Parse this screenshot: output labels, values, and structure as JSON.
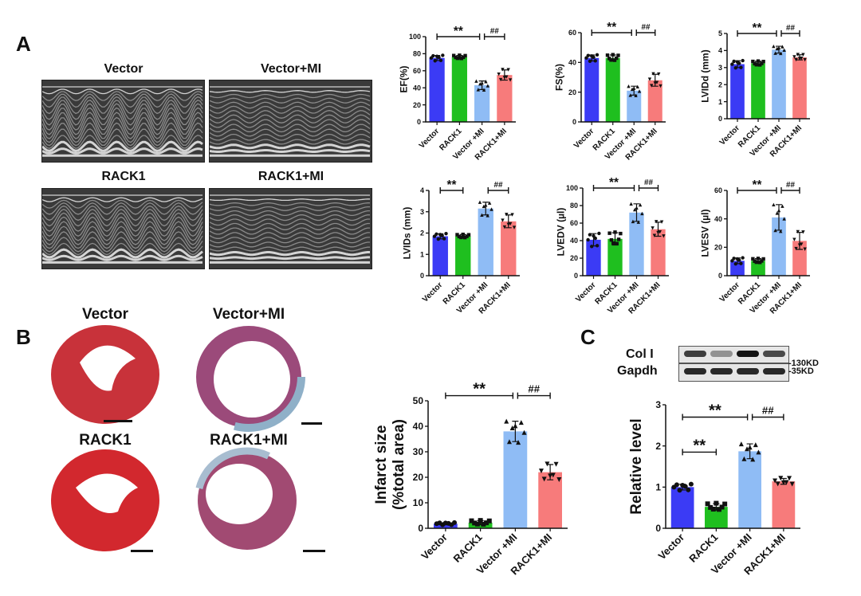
{
  "panels": {
    "a": "A",
    "b": "B",
    "c": "C"
  },
  "echo": {
    "labels": [
      "Vector",
      "Vector+MI",
      "RACK1",
      "RACK1+MI"
    ]
  },
  "histology": {
    "labels": [
      "Vector",
      "Vector+MI",
      "RACK1",
      "RACK1+MI"
    ]
  },
  "blot": {
    "rows": [
      {
        "label": "Col I",
        "marker": "-130KD"
      },
      {
        "label": "Gapdh",
        "marker": "-35KD"
      }
    ],
    "col1_intensity": [
      0.8,
      0.4,
      1.0,
      0.75
    ]
  },
  "colors": {
    "Vector": "#3b3bf5",
    "RACK1": "#1fbf1f",
    "Vector +MI": "#8fbcf5",
    "RACK1+MI": "#f77b7b"
  },
  "chart_data": [
    {
      "type": "bar",
      "title": "",
      "ylabel": [
        "EF(%)"
      ],
      "categories": [
        "Vector",
        "RACK1",
        "Vector +MI",
        "RACK1+MI"
      ],
      "values": [
        75,
        76,
        43,
        55
      ],
      "errors": [
        3,
        2,
        5,
        6
      ],
      "ylim": [
        0,
        100
      ],
      "yticks": [
        0,
        20,
        40,
        60,
        80,
        100
      ],
      "significance": [
        {
          "from": 0,
          "to": 2,
          "label": "**",
          "level": 100
        },
        {
          "from": 2,
          "to": 3,
          "label": "##",
          "level": 100
        }
      ]
    },
    {
      "type": "bar",
      "title": "",
      "ylabel": [
        "FS(%)"
      ],
      "categories": [
        "Vector",
        "RACK1",
        "Vector +MI",
        "RACK1+MI"
      ],
      "values": [
        43,
        43,
        21,
        28
      ],
      "errors": [
        2,
        2,
        3,
        4
      ],
      "ylim": [
        0,
        60
      ],
      "yticks": [
        0,
        20,
        40,
        60
      ],
      "significance": [
        {
          "from": 0,
          "to": 2,
          "label": "**",
          "level": 60
        },
        {
          "from": 2,
          "to": 3,
          "label": "##",
          "level": 60
        }
      ]
    },
    {
      "type": "bar",
      "title": "",
      "ylabel": [
        "LVIDd (mm)"
      ],
      "categories": [
        "Vector",
        "RACK1",
        "Vector +MI",
        "RACK1+MI"
      ],
      "values": [
        3.2,
        3.25,
        4.05,
        3.6
      ],
      "errors": [
        0.2,
        0.12,
        0.2,
        0.15
      ],
      "ylim": [
        0,
        5
      ],
      "yticks": [
        0,
        1,
        2,
        3,
        4,
        5
      ],
      "significance": [
        {
          "from": 0,
          "to": 2,
          "label": "**",
          "level": 5
        },
        {
          "from": 2,
          "to": 3,
          "label": "##",
          "level": 5
        }
      ]
    },
    {
      "type": "bar",
      "title": "",
      "ylabel": [
        "LVIDs (mm)"
      ],
      "categories": [
        "Vector",
        "RACK1",
        "Vector +MI",
        "RACK1+MI"
      ],
      "values": [
        1.85,
        1.85,
        3.15,
        2.55
      ],
      "errors": [
        0.12,
        0.08,
        0.3,
        0.3
      ],
      "ylim": [
        0,
        4
      ],
      "yticks": [
        0,
        1,
        2,
        3,
        4
      ],
      "significance": [
        {
          "from": 0,
          "to": 1,
          "label": "**",
          "level": 4
        },
        {
          "from": 2,
          "to": 3,
          "label": "##",
          "level": 4
        }
      ]
    },
    {
      "type": "bar",
      "title": "",
      "ylabel": [
        "LVEDV (µl)"
      ],
      "categories": [
        "Vector",
        "RACK1",
        "Vector +MI",
        "RACK1+MI"
      ],
      "values": [
        41,
        42,
        72,
        53
      ],
      "errors": [
        7,
        7,
        10,
        8
      ],
      "ylim": [
        0,
        100
      ],
      "yticks": [
        0,
        20,
        40,
        60,
        80,
        100
      ],
      "significance": [
        {
          "from": 0,
          "to": 2,
          "label": "**",
          "level": 100
        },
        {
          "from": 2,
          "to": 3,
          "label": "##",
          "level": 100
        }
      ]
    },
    {
      "type": "bar",
      "title": "",
      "ylabel": [
        "LVESV (µl)"
      ],
      "categories": [
        "Vector",
        "RACK1",
        "Vector +MI",
        "RACK1+MI"
      ],
      "values": [
        10.5,
        10.5,
        41,
        24.5
      ],
      "errors": [
        2,
        1.5,
        9,
        6
      ],
      "ylim": [
        0,
        60
      ],
      "yticks": [
        0,
        20,
        40,
        60
      ],
      "significance": [
        {
          "from": 0,
          "to": 2,
          "label": "**",
          "level": 60
        },
        {
          "from": 2,
          "to": 3,
          "label": "##",
          "level": 60
        }
      ]
    },
    {
      "type": "bar",
      "title": "",
      "ylabel": [
        "Infarct size",
        "(%total area)"
      ],
      "categories": [
        "Vector",
        "RACK1",
        "Vector +MI",
        "RACK1+MI"
      ],
      "values": [
        1.8,
        2.2,
        38,
        22
      ],
      "errors": [
        0.4,
        0.8,
        4,
        3
      ],
      "ylim": [
        0,
        50
      ],
      "yticks": [
        0,
        10,
        20,
        30,
        40,
        50
      ],
      "significance": [
        {
          "from": 0,
          "to": 2,
          "label": "**",
          "level": 52
        },
        {
          "from": 2,
          "to": 3,
          "label": "##",
          "level": 52
        }
      ]
    },
    {
      "type": "bar",
      "title": "",
      "ylabel": [
        "Relative level"
      ],
      "categories": [
        "Vector",
        "RACK1",
        "Vector +MI",
        "RACK1+MI"
      ],
      "values": [
        1.0,
        0.52,
        1.87,
        1.14
      ],
      "errors": [
        0.07,
        0.08,
        0.18,
        0.07
      ],
      "ylim": [
        0,
        3
      ],
      "yticks": [
        0,
        1,
        2,
        3
      ],
      "significance": [
        {
          "from": 0,
          "to": 2,
          "label": "**",
          "level": 2.7
        },
        {
          "from": 2,
          "to": 3,
          "label": "##",
          "level": 2.7
        },
        {
          "from": 0,
          "to": 1,
          "label": "**",
          "level": 1.85
        }
      ]
    }
  ]
}
